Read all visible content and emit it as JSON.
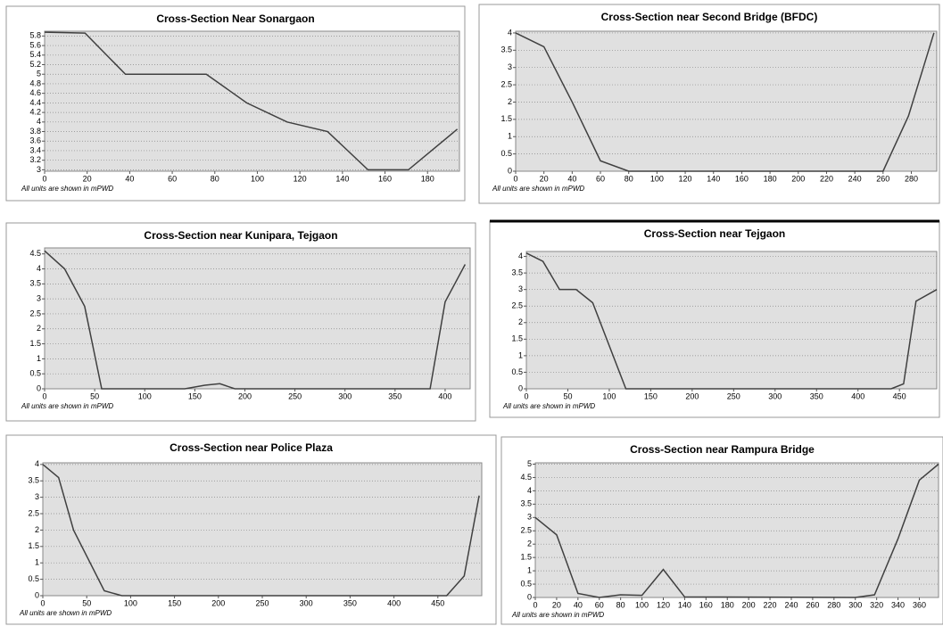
{
  "chart_data": [
    {
      "type": "line",
      "title": "Cross-Section Near Sonargaon",
      "note": "All units are shown in mPWD",
      "x": [
        0,
        10,
        19,
        38,
        76,
        95,
        114,
        133,
        152,
        171,
        194
      ],
      "series": [
        {
          "color": "#404040",
          "values": [
            5.88,
            5.87,
            5.86,
            5.0,
            5.0,
            4.4,
            4.0,
            3.8,
            3.0,
            3.0,
            3.85
          ]
        }
      ],
      "xlim": [
        0,
        195
      ],
      "ylim": [
        2.97,
        5.9
      ],
      "xticks": [
        0,
        20,
        40,
        60,
        80,
        100,
        120,
        140,
        160,
        180
      ],
      "yticks": [
        3,
        3.2,
        3.4,
        3.6,
        3.8,
        4,
        4.2,
        4.4,
        4.6,
        4.8,
        5,
        5.2,
        5.4,
        5.6,
        5.8
      ],
      "grid": true
    },
    {
      "type": "line",
      "title": "Cross-Section near  Second Bridge (BFDC)",
      "note": "All units are shown in mPWD",
      "x": [
        0,
        20,
        40,
        60,
        80,
        260,
        278,
        296
      ],
      "series": [
        {
          "color": "#404040",
          "values": [
            4,
            3.6,
            2.0,
            0.3,
            0,
            0,
            1.6,
            4
          ]
        }
      ],
      "xlim": [
        0,
        298
      ],
      "ylim": [
        0,
        4.05
      ],
      "xticks": [
        0,
        20,
        40,
        60,
        80,
        100,
        120,
        140,
        160,
        180,
        200,
        220,
        240,
        260,
        280
      ],
      "yticks": [
        0,
        0.5,
        1,
        1.5,
        2,
        2.5,
        3,
        3.5,
        4
      ],
      "grid": true
    },
    {
      "type": "line",
      "title": "Cross-Section near Kunipara, Tejgaon",
      "note": "All units are shown in mPWD",
      "x": [
        0,
        20,
        40,
        57,
        140,
        160,
        175,
        190,
        385,
        400,
        420
      ],
      "series": [
        {
          "color": "#404040",
          "values": [
            4.6,
            4.0,
            2.75,
            0,
            0,
            0.12,
            0.17,
            0,
            0,
            2.9,
            4.15
          ]
        }
      ],
      "xlim": [
        0,
        425
      ],
      "ylim": [
        0,
        4.7
      ],
      "xticks": [
        0,
        50,
        100,
        150,
        200,
        250,
        300,
        350,
        400
      ],
      "yticks": [
        0,
        0.5,
        1,
        1.5,
        2,
        2.5,
        3,
        3.5,
        4,
        4.5
      ],
      "grid": true
    },
    {
      "type": "line",
      "title": "Cross-Section near Tejgaon",
      "note": "All units are shown in mPWD",
      "x": [
        0,
        20,
        40,
        60,
        80,
        120,
        440,
        455,
        470,
        495
      ],
      "series": [
        {
          "color": "#404040",
          "values": [
            4.1,
            3.85,
            3,
            3,
            2.6,
            0,
            0,
            0.15,
            2.65,
            3
          ]
        }
      ],
      "xlim": [
        0,
        495
      ],
      "ylim": [
        0,
        4.15
      ],
      "xticks": [
        0,
        50,
        100,
        150,
        200,
        250,
        300,
        350,
        400,
        450
      ],
      "yticks": [
        0,
        0.5,
        1,
        1.5,
        2,
        2.5,
        3,
        3.5,
        4
      ],
      "grid": true
    },
    {
      "type": "line",
      "title": "Cross-Section near Police Plaza",
      "note": "All units are shown in mPWD",
      "x": [
        0,
        18,
        35,
        70,
        90,
        460,
        480,
        497
      ],
      "series": [
        {
          "color": "#404040",
          "values": [
            4,
            3.6,
            2.0,
            0.15,
            0,
            0,
            0.6,
            3.05
          ]
        }
      ],
      "xlim": [
        0,
        500
      ],
      "ylim": [
        0,
        4.05
      ],
      "xticks": [
        0,
        50,
        100,
        150,
        200,
        250,
        300,
        350,
        400,
        450
      ],
      "yticks": [
        0,
        0.5,
        1,
        1.5,
        2,
        2.5,
        3,
        3.5,
        4
      ],
      "grid": true
    },
    {
      "type": "line",
      "title": "Cross-Section near Rampura Bridge",
      "note": "All units are shown in mPWD",
      "x": [
        0,
        20,
        40,
        60,
        80,
        100,
        120,
        140,
        300,
        318,
        340,
        360,
        378
      ],
      "series": [
        {
          "color": "#404040",
          "values": [
            3,
            2.35,
            0.15,
            0,
            0.1,
            0.08,
            1.05,
            0.02,
            0,
            0.1,
            2.2,
            4.4,
            5
          ]
        }
      ],
      "xlim": [
        0,
        378
      ],
      "ylim": [
        0,
        5.05
      ],
      "xticks": [
        0,
        20,
        40,
        60,
        80,
        100,
        120,
        140,
        160,
        180,
        200,
        220,
        240,
        260,
        280,
        300,
        320,
        340,
        360
      ],
      "yticks": [
        0,
        0.5,
        1,
        1.5,
        2,
        2.5,
        3,
        3.5,
        4,
        4.5,
        5
      ],
      "grid": true
    }
  ]
}
